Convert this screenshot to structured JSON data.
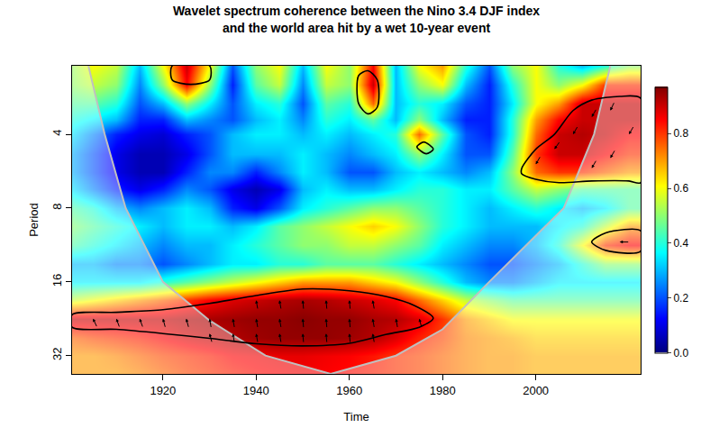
{
  "chart_data": {
    "type": "heatmap",
    "title": [
      "Wavelet spectrum coherence between the Nino 3.4 DJF index",
      "and the world area hit by a wet 10-year event"
    ],
    "x_label": "Time",
    "y_label": "Period",
    "log": "y",
    "xlim": [
      1900.5,
      2022.5
    ],
    "xticks": [
      1920,
      1940,
      1960,
      1980,
      2000
    ],
    "ylim": [
      38,
      2.1
    ],
    "yticks": [
      4,
      8,
      16,
      32
    ],
    "zlim": [
      0,
      0.97
    ],
    "zticks": [
      {
        "value": 0,
        "label": "0.0"
      },
      0.2,
      0.4,
      0.6,
      0.8
    ],
    "x": [
      1900,
      1905,
      1910,
      1915,
      1920,
      1925,
      1930,
      1935,
      1940,
      1945,
      1950,
      1955,
      1960,
      1965,
      1970,
      1975,
      1980,
      1985,
      1990,
      1995,
      2000,
      2005,
      2010,
      2015,
      2020
    ],
    "y": [
      2.1,
      2.5,
      3,
      3.5,
      4,
      4.8,
      5.7,
      6.7,
      8,
      9.5,
      11.3,
      13.5,
      16,
      19,
      22.6,
      27,
      32,
      38
    ],
    "z": [
      [
        0.5,
        0.6,
        0.55,
        0.3,
        0.6,
        0.9,
        0.6,
        0.2,
        0.5,
        0.6,
        0.3,
        0.6,
        0.5,
        0.85,
        0.3,
        0.6,
        0.7,
        0.4,
        0.2,
        0.5,
        0.6,
        0.4,
        0.3,
        0.4,
        0.5
      ],
      [
        0.5,
        0.55,
        0.5,
        0.25,
        0.5,
        0.85,
        0.5,
        0.15,
        0.45,
        0.55,
        0.25,
        0.55,
        0.5,
        0.9,
        0.3,
        0.5,
        0.6,
        0.3,
        0.15,
        0.4,
        0.6,
        0.5,
        0.6,
        0.8,
        0.8
      ],
      [
        0.45,
        0.45,
        0.4,
        0.2,
        0.3,
        0.5,
        0.35,
        0.2,
        0.35,
        0.4,
        0.2,
        0.45,
        0.4,
        0.75,
        0.3,
        0.4,
        0.35,
        0.2,
        0.15,
        0.35,
        0.6,
        0.7,
        0.9,
        0.9,
        0.9
      ],
      [
        0.4,
        0.35,
        0.3,
        0.15,
        0.15,
        0.3,
        0.25,
        0.2,
        0.3,
        0.35,
        0.25,
        0.4,
        0.35,
        0.45,
        0.3,
        0.5,
        0.3,
        0.15,
        0.15,
        0.4,
        0.7,
        0.85,
        0.9,
        0.9,
        0.9
      ],
      [
        0.35,
        0.25,
        0.15,
        0.1,
        0.08,
        0.15,
        0.2,
        0.3,
        0.35,
        0.35,
        0.3,
        0.35,
        0.3,
        0.35,
        0.4,
        0.75,
        0.45,
        0.2,
        0.15,
        0.4,
        0.75,
        0.9,
        0.92,
        0.9,
        0.85
      ],
      [
        0.3,
        0.2,
        0.1,
        0.05,
        0.05,
        0.1,
        0.2,
        0.3,
        0.3,
        0.3,
        0.35,
        0.3,
        0.25,
        0.3,
        0.35,
        0.5,
        0.35,
        0.2,
        0.2,
        0.45,
        0.8,
        0.9,
        0.9,
        0.85,
        0.8
      ],
      [
        0.3,
        0.2,
        0.1,
        0.05,
        0.05,
        0.15,
        0.25,
        0.25,
        0.15,
        0.25,
        0.35,
        0.3,
        0.2,
        0.2,
        0.3,
        0.35,
        0.3,
        0.25,
        0.3,
        0.5,
        0.75,
        0.8,
        0.8,
        0.75,
        0.7
      ],
      [
        0.35,
        0.25,
        0.15,
        0.1,
        0.15,
        0.25,
        0.2,
        0.1,
        0.05,
        0.1,
        0.3,
        0.35,
        0.3,
        0.3,
        0.35,
        0.4,
        0.4,
        0.35,
        0.35,
        0.45,
        0.55,
        0.5,
        0.45,
        0.45,
        0.45
      ],
      [
        0.45,
        0.4,
        0.3,
        0.25,
        0.3,
        0.35,
        0.3,
        0.15,
        0.1,
        0.2,
        0.35,
        0.4,
        0.45,
        0.5,
        0.5,
        0.45,
        0.4,
        0.35,
        0.3,
        0.35,
        0.4,
        0.35,
        0.3,
        0.35,
        0.45
      ],
      [
        0.5,
        0.45,
        0.4,
        0.35,
        0.3,
        0.35,
        0.35,
        0.3,
        0.35,
        0.45,
        0.5,
        0.55,
        0.6,
        0.65,
        0.6,
        0.5,
        0.4,
        0.35,
        0.3,
        0.3,
        0.3,
        0.35,
        0.4,
        0.55,
        0.7
      ],
      [
        0.45,
        0.4,
        0.35,
        0.3,
        0.25,
        0.3,
        0.3,
        0.35,
        0.4,
        0.45,
        0.5,
        0.5,
        0.55,
        0.55,
        0.5,
        0.45,
        0.35,
        0.3,
        0.25,
        0.25,
        0.3,
        0.4,
        0.6,
        0.8,
        0.85
      ],
      [
        0.3,
        0.3,
        0.25,
        0.25,
        0.2,
        0.25,
        0.3,
        0.35,
        0.35,
        0.4,
        0.4,
        0.45,
        0.45,
        0.45,
        0.4,
        0.35,
        0.3,
        0.25,
        0.2,
        0.2,
        0.25,
        0.3,
        0.4,
        0.5,
        0.5
      ],
      [
        0.35,
        0.35,
        0.35,
        0.35,
        0.4,
        0.45,
        0.5,
        0.55,
        0.6,
        0.65,
        0.7,
        0.7,
        0.7,
        0.65,
        0.6,
        0.5,
        0.4,
        0.3,
        0.25,
        0.25,
        0.3,
        0.35,
        0.35,
        0.35,
        0.35
      ],
      [
        0.55,
        0.6,
        0.65,
        0.7,
        0.75,
        0.8,
        0.85,
        0.88,
        0.9,
        0.92,
        0.93,
        0.92,
        0.9,
        0.88,
        0.85,
        0.75,
        0.65,
        0.55,
        0.5,
        0.45,
        0.45,
        0.45,
        0.45,
        0.45,
        0.45
      ],
      [
        0.9,
        0.9,
        0.9,
        0.9,
        0.9,
        0.92,
        0.93,
        0.94,
        0.95,
        0.95,
        0.96,
        0.95,
        0.95,
        0.93,
        0.92,
        0.88,
        0.8,
        0.7,
        0.65,
        0.6,
        0.6,
        0.6,
        0.6,
        0.6,
        0.6
      ],
      [
        0.75,
        0.78,
        0.8,
        0.82,
        0.85,
        0.88,
        0.9,
        0.92,
        0.94,
        0.95,
        0.95,
        0.95,
        0.94,
        0.92,
        0.88,
        0.82,
        0.78,
        0.72,
        0.7,
        0.68,
        0.65,
        0.65,
        0.65,
        0.65,
        0.65
      ],
      [
        0.7,
        0.7,
        0.72,
        0.75,
        0.78,
        0.8,
        0.82,
        0.85,
        0.86,
        0.87,
        0.87,
        0.86,
        0.85,
        0.83,
        0.8,
        0.78,
        0.75,
        0.72,
        0.7,
        0.7,
        0.68,
        0.68,
        0.68,
        0.68,
        0.68
      ],
      [
        0.7,
        0.7,
        0.7,
        0.72,
        0.75,
        0.78,
        0.8,
        0.82,
        0.84,
        0.85,
        0.86,
        0.85,
        0.84,
        0.82,
        0.8,
        0.78,
        0.75,
        0.72,
        0.7,
        0.7,
        0.68,
        0.68,
        0.68,
        0.68,
        0.68
      ]
    ],
    "cone_of_influence": {
      "x": [
        1904,
        1907.5,
        1912,
        1920,
        1930,
        1942,
        1956,
        1970,
        1980,
        1990,
        2006,
        2012.5,
        2016
      ],
      "y": [
        2.1,
        4,
        8,
        16,
        23,
        32,
        38,
        32,
        25,
        16,
        8,
        4,
        2.1
      ]
    },
    "significance_contours": [
      {
        "x": [
          1900.5,
          1910,
          1920,
          1930,
          1940,
          1950,
          1960,
          1968,
          1974,
          1978,
          1975,
          1968,
          1960,
          1950,
          1940,
          1930,
          1920,
          1910,
          1900.5
        ],
        "y": [
          21.8,
          21.3,
          20.8,
          19.6,
          18.2,
          17.1,
          17.4,
          18.4,
          20,
          22.5,
          24.5,
          26.2,
          28.5,
          29.2,
          28.6,
          27.2,
          26,
          25,
          24.5
        ]
      },
      {
        "x": [
          1997,
          2000,
          2004,
          2008,
          2012,
          2018,
          2022.5,
          2022.5,
          2020,
          2012,
          2005,
          2000,
          1997
        ],
        "y": [
          5.5,
          4.6,
          4,
          3.2,
          2.9,
          2.8,
          2.85,
          6.3,
          6.2,
          6.2,
          6.3,
          6.1,
          5.8
        ]
      },
      {
        "x": [
          2012,
          2015,
          2022.5,
          2022.5,
          2015
        ],
        "y": [
          11,
          10.1,
          9.9,
          12,
          11.9
        ]
      },
      {
        "x": [
          1922,
          1922,
          1926,
          1930,
          1930
        ],
        "y": [
          2.1,
          2.4,
          2.5,
          2.4,
          2.1
        ]
      },
      {
        "x": [
          1962,
          1962,
          1964,
          1966,
          1966,
          1964
        ],
        "y": [
          2.3,
          3.0,
          3.3,
          3.1,
          2.4,
          2.2
        ]
      },
      {
        "x": [
          1974.5,
          1976,
          1978,
          1976.5
        ],
        "y": [
          4.5,
          4.3,
          4.6,
          4.8
        ]
      }
    ],
    "phase_arrows": {
      "x": [
        1905,
        1910,
        1915,
        1920,
        1925,
        1930,
        1935,
        1940,
        1945,
        1950,
        1955,
        1960,
        1965,
        1970,
        1975,
        1940,
        1945,
        1950,
        1955,
        1960,
        1965,
        1930,
        1935,
        1940,
        1945,
        1950,
        1955,
        1960,
        1965,
        2000,
        2004,
        2008,
        2012,
        2016,
        2020,
        2016,
        2012,
        2018
      ],
      "y": [
        22.6,
        22.6,
        22.6,
        22.6,
        22.6,
        22.6,
        22.6,
        22.6,
        22.6,
        22.6,
        22.6,
        22.6,
        22.6,
        22.6,
        22.6,
        19,
        19,
        19,
        19,
        19,
        19,
        26,
        26,
        26,
        26,
        26,
        26,
        26,
        26,
        5.3,
        4.6,
        4,
        3.4,
        3.2,
        4,
        5,
        5.5,
        11
      ],
      "angle": [
        115,
        110,
        110,
        105,
        105,
        100,
        100,
        100,
        100,
        95,
        95,
        95,
        100,
        100,
        105,
        100,
        100,
        95,
        95,
        95,
        100,
        105,
        100,
        100,
        100,
        95,
        95,
        95,
        100,
        240,
        235,
        240,
        240,
        245,
        240,
        240,
        240,
        180
      ]
    }
  }
}
